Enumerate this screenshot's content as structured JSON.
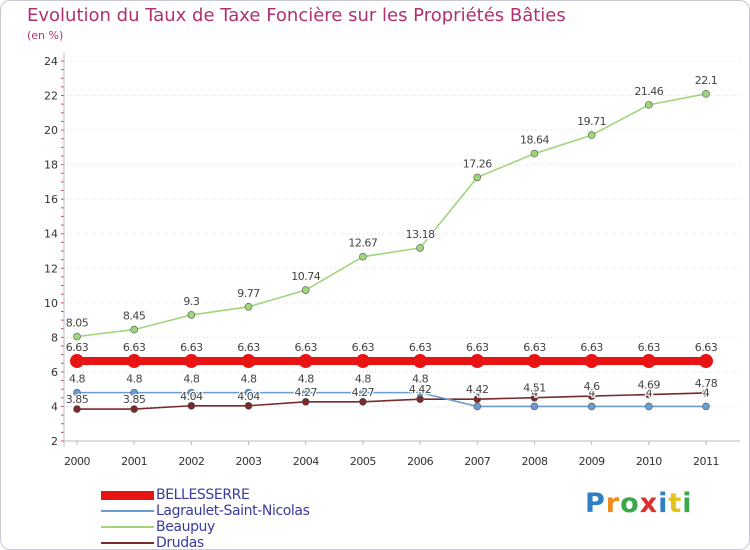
{
  "title": "Evolution du Taux de Taxe Foncière sur les Propriétés Bâties",
  "unit": "(en %)",
  "logo": {
    "text": "Proxiti",
    "letter_colors": [
      "#2f7fc2",
      "#f08a1a",
      "#3aa84a",
      "#e02f2f",
      "#2f7fc2",
      "#e6c31a",
      "#3aa84a"
    ]
  },
  "chart_data": {
    "type": "line",
    "title": "Evolution du Taux de Taxe Foncière sur les Propriétés Bâties",
    "ylabel": "(en %)",
    "xlabel": "",
    "x": [
      "2000",
      "2001",
      "2002",
      "2003",
      "2004",
      "2005",
      "2006",
      "2007",
      "2008",
      "2009",
      "2010",
      "2011"
    ],
    "ylim": [
      2,
      24
    ],
    "yticks": [
      "2",
      "4",
      "6",
      "8",
      "10",
      "12",
      "14",
      "16",
      "18",
      "20",
      "22",
      "24"
    ],
    "grid": "horizontal",
    "legend_position": "bottom-left",
    "series": [
      {
        "name": "BELLESSERRE",
        "color": "#e81414",
        "values": [
          6.63,
          6.63,
          6.63,
          6.63,
          6.63,
          6.63,
          6.63,
          6.63,
          6.63,
          6.63,
          6.63,
          6.63
        ],
        "labels": [
          "6.63",
          "6.63",
          "6.63",
          "6.63",
          "6.63",
          "6.63",
          "6.63",
          "6.63",
          "6.63",
          "6.63",
          "6.63",
          "6.63"
        ]
      },
      {
        "name": "Lagraulet-Saint-Nicolas",
        "color": "#6a9ccf",
        "values": [
          4.8,
          4.8,
          4.8,
          4.8,
          4.8,
          4.8,
          4.8,
          4,
          4,
          4,
          4,
          4
        ],
        "labels": [
          "4.8",
          "4.8",
          "4.8",
          "4.8",
          "4.8",
          "4.8",
          "4.8",
          "4",
          "4",
          "4",
          "4",
          "4"
        ]
      },
      {
        "name": "Beaupuy",
        "color": "#9fd67a",
        "values": [
          8.05,
          8.45,
          9.3,
          9.77,
          10.74,
          12.67,
          13.18,
          17.26,
          18.64,
          19.71,
          21.46,
          22.1
        ],
        "labels": [
          "8.05",
          "8.45",
          "9.3",
          "9.77",
          "10.74",
          "12.67",
          "13.18",
          "17.26",
          "18.64",
          "19.71",
          "21.46",
          "22.1"
        ]
      },
      {
        "name": "Drudas",
        "color": "#7a2a2a",
        "values": [
          3.85,
          3.85,
          4.04,
          4.04,
          4.27,
          4.27,
          4.42,
          4.42,
          4.51,
          4.6,
          4.69,
          4.78
        ],
        "labels": [
          "3.85",
          "3.85",
          "4.04",
          "4.04",
          "4.27",
          "4.27",
          "4.42",
          "4.42",
          "4.51",
          "4.6",
          "4.69",
          "4.78"
        ]
      }
    ]
  }
}
